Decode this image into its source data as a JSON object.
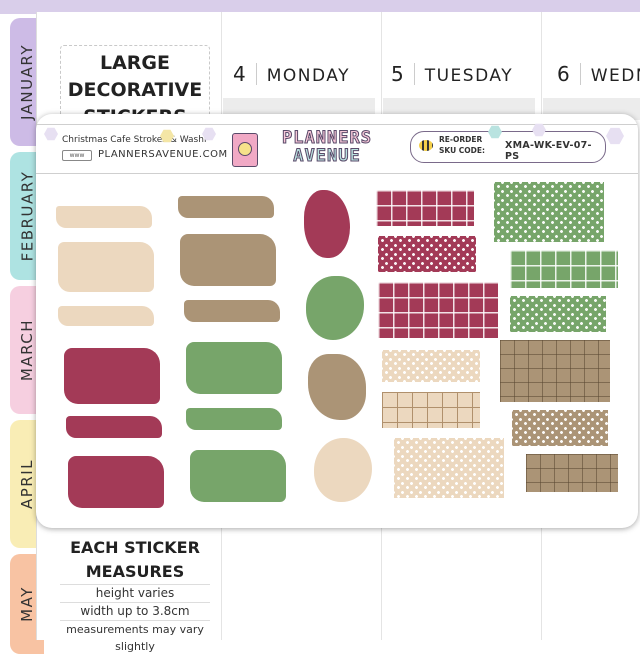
{
  "months": [
    "JANUARY",
    "FEBRUARY",
    "MARCH",
    "APRIL",
    "MAY"
  ],
  "days": [
    {
      "num": "4",
      "name": "MONDAY"
    },
    {
      "num": "5",
      "name": "TUESDAY"
    },
    {
      "num": "6",
      "name": "WEDN"
    }
  ],
  "title": {
    "line1": "LARGE",
    "line2": "DECORATIVE",
    "line3": "STICKERS"
  },
  "sheet": {
    "product_name": "Christmas Cafe Strokes & Washi",
    "url": "PLANNERSAVENUE.COM",
    "logo_line1": "PLANNERS",
    "logo_line2": "AVENUE",
    "reorder_label": "RE-ORDER",
    "sku_label": "SKU CODE:",
    "sku": "XMA-WK-EV-07-PS"
  },
  "measure": {
    "heading1": "EACH STICKER",
    "heading2": "MEASURES",
    "line1": "height varies",
    "line2": "width up to 3.8cm",
    "line3": "measurements may vary slightly"
  },
  "colors": {
    "beige": "#ecd8bf",
    "taupe": "#ab9476",
    "burgundy": "#a33a57",
    "green": "#77a56a",
    "tab_january": "#cdbbe6",
    "tab_february": "#aee3e2",
    "tab_march": "#f6cfe0",
    "tab_april": "#f9edb5",
    "tab_may": "#f8c3a3"
  }
}
